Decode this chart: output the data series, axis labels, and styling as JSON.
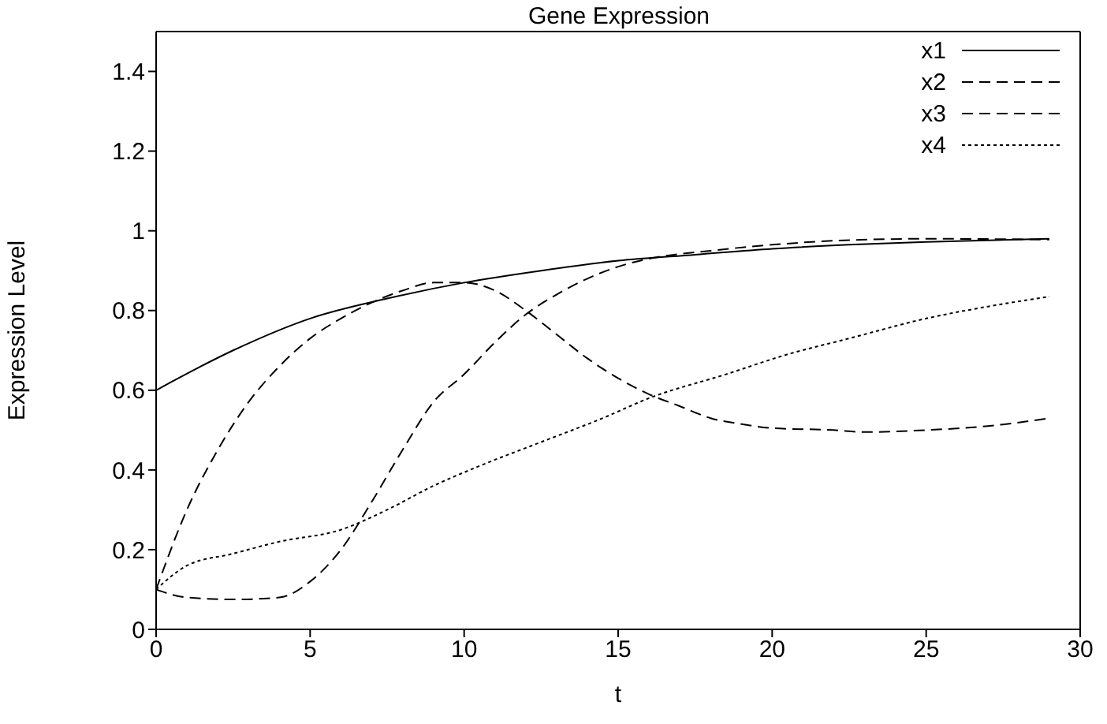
{
  "chart_data": {
    "type": "line",
    "title": "Gene Expression",
    "xlabel": "t",
    "ylabel": "Expression Level",
    "xlim": [
      0,
      30
    ],
    "xticks": [
      0,
      5,
      10,
      15,
      20,
      25,
      30
    ],
    "ylim": [
      0,
      1.5
    ],
    "yticks": [
      0,
      0.2,
      0.4,
      0.6,
      0.8,
      1,
      1.2,
      1.4
    ],
    "legend": "top right",
    "marker": "none",
    "series": [
      {
        "name": "x1",
        "color": "#000000",
        "line_style": "solid",
        "x": [
          0,
          2.5,
          5,
          7.5,
          10,
          12.5,
          15,
          17.5,
          20,
          22.5,
          25,
          29
        ],
        "values": [
          0.6,
          0.7,
          0.78,
          0.83,
          0.87,
          0.9,
          0.925,
          0.94,
          0.955,
          0.965,
          0.972,
          0.98
        ]
      },
      {
        "name": "x2",
        "color": "#000000",
        "line_style": "dashed",
        "x": [
          0,
          1,
          2,
          3,
          4,
          5,
          6,
          7,
          8,
          9,
          10,
          11,
          12,
          13,
          14,
          15,
          16,
          17,
          18,
          19,
          20,
          22,
          23,
          25,
          27,
          29
        ],
        "values": [
          0.1,
          0.3,
          0.45,
          0.57,
          0.66,
          0.73,
          0.78,
          0.82,
          0.85,
          0.87,
          0.87,
          0.85,
          0.8,
          0.74,
          0.68,
          0.63,
          0.59,
          0.56,
          0.53,
          0.515,
          0.505,
          0.5,
          0.495,
          0.5,
          0.51,
          0.53
        ]
      },
      {
        "name": "x3",
        "color": "#000000",
        "line_style": "dashed",
        "x": [
          0,
          1,
          2.5,
          4,
          5,
          6,
          7,
          8,
          9,
          10,
          11,
          12,
          13,
          14,
          15,
          16,
          18,
          20,
          22,
          25,
          29
        ],
        "values": [
          0.1,
          0.08,
          0.075,
          0.08,
          0.12,
          0.2,
          0.32,
          0.45,
          0.57,
          0.64,
          0.72,
          0.79,
          0.84,
          0.88,
          0.91,
          0.93,
          0.95,
          0.965,
          0.975,
          0.98,
          0.978
        ]
      },
      {
        "name": "x4",
        "color": "#000000",
        "line_style": "dotted",
        "x": [
          0,
          1,
          2.5,
          4,
          6,
          7.5,
          9,
          10.5,
          12.5,
          14.5,
          16,
          18.5,
          20.5,
          22.5,
          25,
          27,
          29
        ],
        "values": [
          0.1,
          0.16,
          0.19,
          0.22,
          0.25,
          0.3,
          0.36,
          0.41,
          0.47,
          0.53,
          0.58,
          0.64,
          0.69,
          0.73,
          0.78,
          0.81,
          0.835
        ]
      }
    ]
  }
}
